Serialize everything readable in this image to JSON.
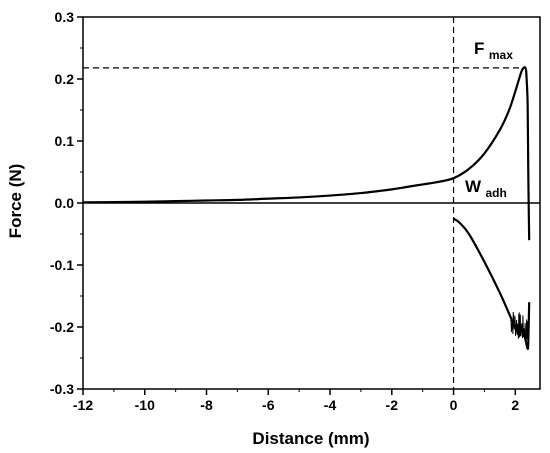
{
  "chart_data": {
    "type": "line",
    "title": "",
    "xlabel": "Distance (mm)",
    "ylabel": "Force (N)",
    "xlim": [
      -12,
      2.8
    ],
    "ylim": [
      -0.3,
      0.3
    ],
    "x_ticks": [
      -12,
      -10,
      -8,
      -6,
      -4,
      -2,
      0,
      2
    ],
    "x_tick_labels": [
      "-12",
      "-10",
      "-8",
      "-6",
      "-4",
      "-2",
      "0",
      "2"
    ],
    "y_ticks": [
      -0.3,
      -0.2,
      -0.1,
      0.0,
      0.1,
      0.2,
      0.3
    ],
    "y_tick_labels": [
      "-0.3",
      "-0.2",
      "-0.1",
      "0.0",
      "0.1",
      "0.2",
      "0.3"
    ],
    "grid": false,
    "annotations": [
      {
        "id": "fmax",
        "base": "F",
        "sub": "max"
      },
      {
        "id": "wadh",
        "base": "W",
        "sub": "adh"
      }
    ],
    "reference_lines": {
      "zero_line_y": 0.0,
      "fmax_dashed_y": 0.218,
      "vertical_dashed_x": 0.0
    },
    "series": [
      {
        "segment": "approach",
        "x": [
          -12,
          -11,
          -10,
          -9,
          -8,
          -7,
          -6,
          -5,
          -4,
          -3,
          -2,
          -1.5,
          -1,
          -0.5,
          0,
          0.5,
          1,
          1.5,
          1.8,
          2.0,
          2.2,
          2.3,
          2.35
        ],
        "y": [
          0.001,
          0.0015,
          0.002,
          0.003,
          0.004,
          0.005,
          0.007,
          0.009,
          0.012,
          0.016,
          0.022,
          0.026,
          0.03,
          0.034,
          0.04,
          0.055,
          0.08,
          0.118,
          0.15,
          0.18,
          0.212,
          0.219,
          0.215
        ]
      },
      {
        "segment": "unloading",
        "x": [
          2.35,
          2.4,
          2.42,
          2.45
        ],
        "y": [
          0.215,
          0.16,
          0.05,
          -0.06
        ]
      },
      {
        "segment": "retraction",
        "x": [
          0.0,
          0.2,
          0.5,
          1.0,
          1.5,
          1.9,
          2.0,
          2.1,
          2.2,
          2.3,
          2.35,
          2.4,
          2.42,
          2.45
        ],
        "y": [
          -0.025,
          -0.032,
          -0.05,
          -0.095,
          -0.145,
          -0.19,
          -0.2,
          -0.205,
          -0.205,
          -0.215,
          -0.225,
          -0.235,
          -0.225,
          -0.16
        ]
      }
    ],
    "noise_region": {
      "x": [
        1.85,
        2.45
      ],
      "y": [
        -0.235,
        -0.17
      ]
    },
    "line_color": "#000000"
  }
}
